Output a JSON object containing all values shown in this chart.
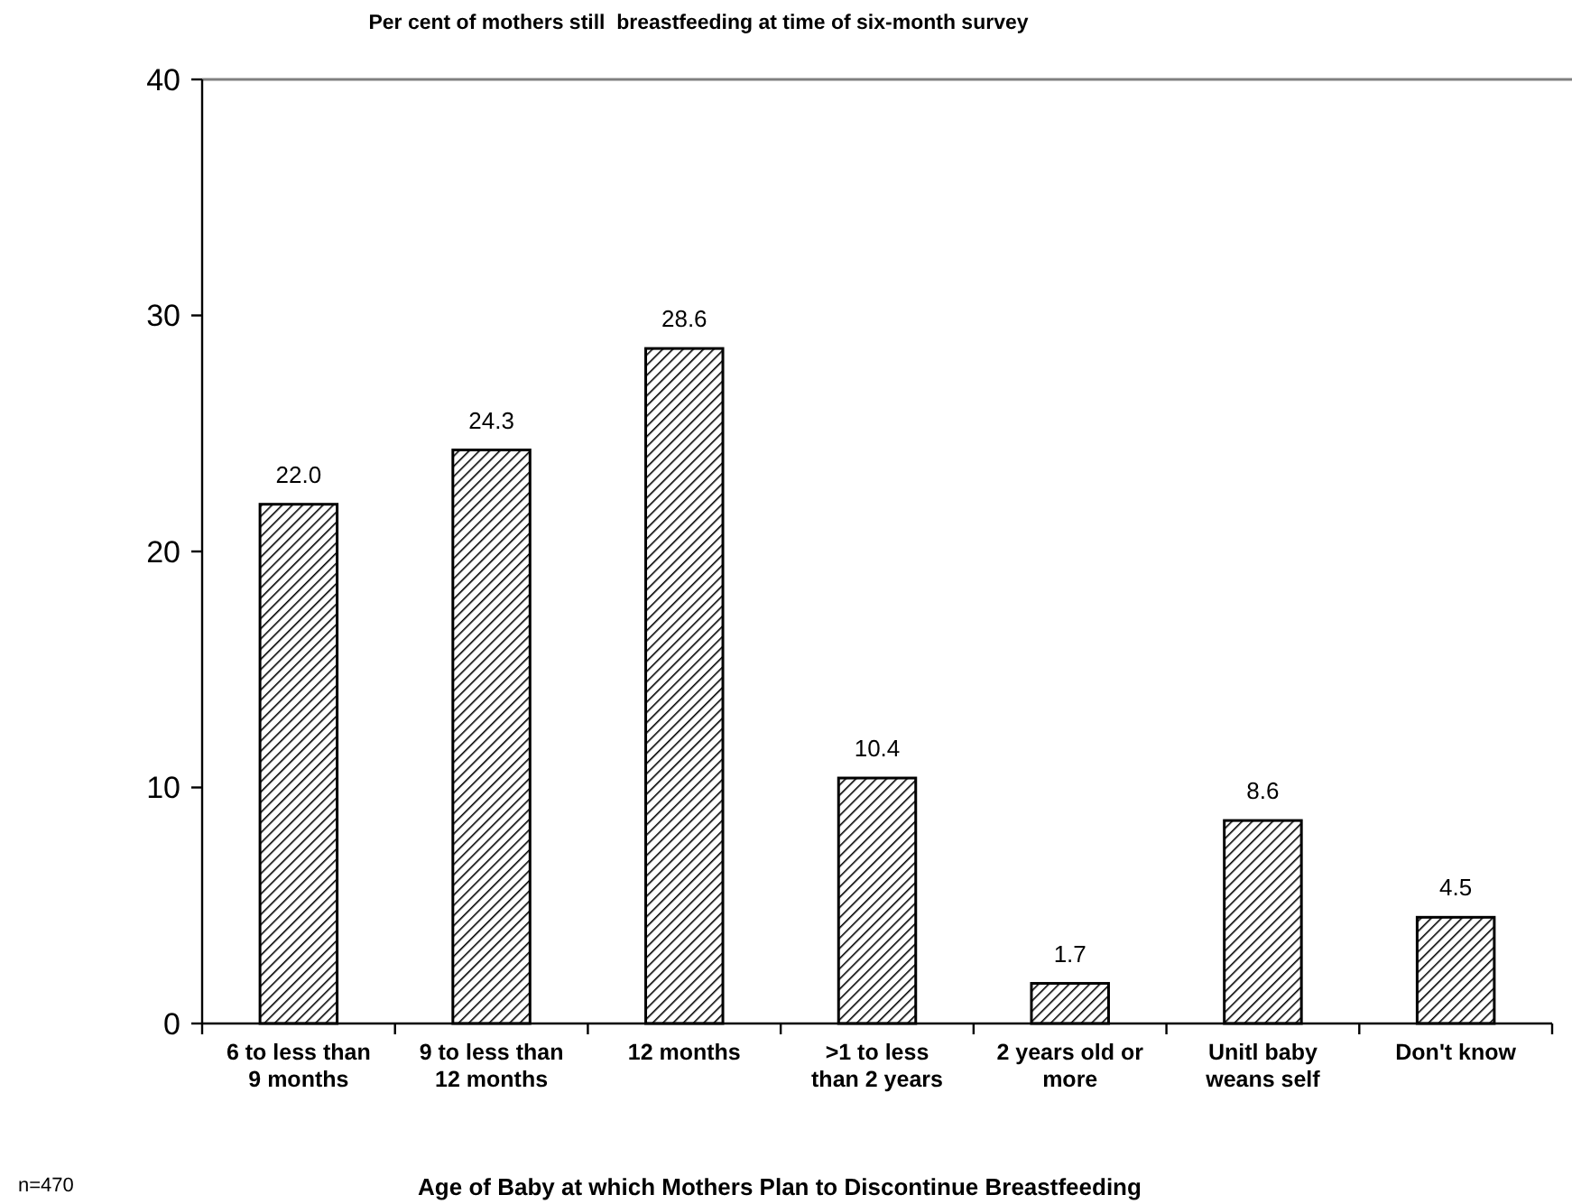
{
  "chart_data": {
    "type": "bar",
    "title": "Per cent of mothers still  breastfeeding at time of six-month survey",
    "xlabel": "Age of Baby at which Mothers Plan to Discontinue Breastfeeding",
    "annotations": [
      "n=470"
    ],
    "categories": [
      "6 to less than\n9 months",
      "9 to less than\n12 months",
      "12 months",
      ">1 to less\nthan 2 years",
      "2 years old or\nmore",
      "Unitl baby\nweans self",
      "Don't know"
    ],
    "values": [
      22.0,
      24.3,
      28.6,
      10.4,
      1.7,
      8.6,
      4.5
    ],
    "value_labels": [
      "22.0",
      "24.3",
      "28.6",
      "10.4",
      "1.7",
      "8.6",
      "4.5"
    ],
    "color": "#000000",
    "ylim": [
      0,
      40
    ],
    "yticks": [
      0,
      10,
      20,
      30,
      40
    ]
  }
}
